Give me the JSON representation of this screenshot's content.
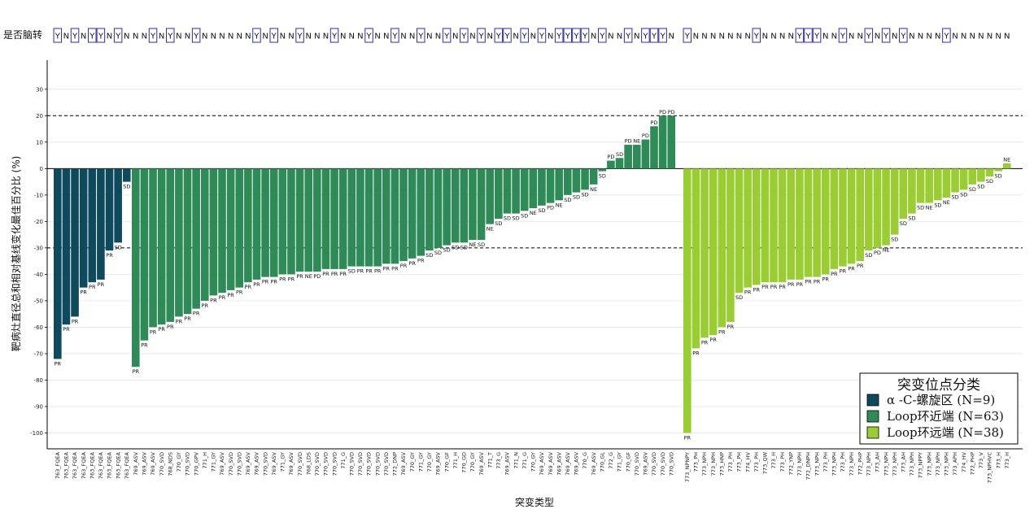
{
  "chart_data": {
    "type": "bar",
    "title": "",
    "xlabel": "突变类型",
    "ylabel": "靶病灶直径总和相对基线变化最佳百分比 (%)",
    "ylim": [
      -106,
      41
    ],
    "yticks": [
      30,
      20,
      10,
      0,
      -10,
      -20,
      -30,
      -40,
      -50,
      -60,
      -70,
      -80,
      -90,
      -100
    ],
    "reference_lines": [
      20,
      -30
    ],
    "grid": true,
    "top_row_label": "是否脑转",
    "legend": {
      "title": "突变位点分类",
      "position": "bottom-right",
      "items": [
        {
          "label": "α -C-螺旋区 (N=9)",
          "color": "#0d4a5e"
        },
        {
          "label": "Loop环近端 (N=63)",
          "color": "#2e8b57"
        },
        {
          "label": "Loop环远端 (N=38)",
          "color": "#9acd32"
        }
      ]
    },
    "colors": {
      "alpha": "#0d4a5e",
      "proximal": "#2e8b57",
      "distal": "#9acd32"
    },
    "series": [
      {
        "name": "α -C-螺旋区 (N=9)",
        "categories": [
          "763_FQEA",
          "763_FQEA",
          "763_FQEA",
          "763_FQEA",
          "763_FQEA",
          "763_FQEA",
          "763_FQEA",
          "763_FQEA",
          "763_FQEA"
        ],
        "values": [
          -72,
          -59,
          -56,
          -45,
          -43,
          -42,
          -31,
          -28,
          -5
        ],
        "responses": [
          "PR",
          "PR",
          "PR",
          "PR",
          "PR",
          "PR",
          "PR",
          "SD",
          "SD"
        ],
        "brain": [
          "Y",
          "N",
          "Y",
          "N",
          "Y",
          "Y",
          "N",
          "Y",
          "N"
        ]
      },
      {
        "name": "Loop环近端 (N=63)",
        "categories": [
          "769_ASV",
          "769_ASV",
          "769_ASV",
          "770_SVD",
          "768_NDS",
          "770_GY",
          "770_SVD",
          "770_GPV",
          "771_H",
          "771_GY",
          "769_ASV",
          "770_SVD",
          "770_SVD",
          "769_ASV",
          "769_ASV",
          "770_SVD",
          "769_ASV",
          "771_GY",
          "769_ASV",
          "770_SVD",
          "768_LDS",
          "770_SVD",
          "770_SVD",
          "770_SVD",
          "771_G",
          "770_SVD",
          "770_SVD",
          "770_SVD",
          "770_SVD",
          "770_SVD",
          "772_DNP",
          "769_ASV",
          "770_GY",
          "771_GY",
          "770_GY",
          "769_ASV",
          "770_GF",
          "771_H",
          "770_GD",
          "770_GY",
          "769_ASV",
          "771_T",
          "773_G",
          "769_ASV",
          "771_N",
          "771_G",
          "770_GY",
          "769_ASV",
          "769_ASV",
          "769_ASV",
          "769_ASV",
          "769_ASV",
          "770_G",
          "769_ASV",
          "770_GL",
          "772_G",
          "771_GY",
          "770_GF",
          "770_SVD",
          "769_ASV",
          "770_SVD",
          "770_SVD",
          "770_SVD"
        ],
        "values": [
          -75,
          -65,
          -60,
          -59,
          -58,
          -56,
          -55,
          -53,
          -50,
          -48,
          -47,
          -46,
          -45,
          -43,
          -42,
          -41,
          -41,
          -40,
          -40,
          -39,
          -39,
          -39,
          -38,
          -38,
          -38,
          -37,
          -37,
          -37,
          -37,
          -36,
          -36,
          -35,
          -34,
          -33,
          -31,
          -30,
          -29,
          -28,
          -28,
          -27,
          -27,
          -21,
          -19,
          -17,
          -17,
          -16,
          -15,
          -14,
          -13,
          -12,
          -10,
          -9,
          -8,
          -6,
          -1,
          3,
          4,
          9,
          9,
          11,
          16,
          20,
          20
        ],
        "responses": [
          "PR",
          "PR",
          "PR",
          "PR",
          "PR",
          "PR",
          "PR",
          "PR",
          "PR",
          "PR",
          "PR",
          "PR",
          "PR",
          "PR",
          "PR",
          "PR",
          "PR",
          "PR",
          "PR",
          "PR",
          "NE",
          "PD",
          "PR",
          "PR",
          "PR",
          "SD",
          "PR",
          "PR",
          "PR",
          "PR",
          "PR",
          "PR",
          "PR",
          "PR",
          "SD",
          "SD",
          "SD",
          "SD",
          "SD",
          "NE",
          "SD",
          "NE",
          "SD",
          "SD",
          "SD",
          "SD",
          "NE",
          "SD",
          "PD",
          "NE",
          "SD",
          "SD",
          "SD",
          "NE",
          "SD",
          "PD",
          "SD",
          "PD",
          "NE",
          "PD",
          "PD",
          "PD",
          "PD"
        ],
        "brain": [
          "N",
          "N",
          "Y",
          "N",
          "Y",
          "N",
          "N",
          "Y",
          "N",
          "N",
          "N",
          "N",
          "N",
          "N",
          "Y",
          "N",
          "Y",
          "N",
          "N",
          "Y",
          "N",
          "N",
          "N",
          "Y",
          "N",
          "N",
          "N",
          "Y",
          "N",
          "N",
          "Y",
          "N",
          "N",
          "Y",
          "N",
          "N",
          "Y",
          "N",
          "Y",
          "N",
          "Y",
          "N",
          "Y",
          "Y",
          "N",
          "Y",
          "N",
          "Y",
          "N",
          "Y",
          "Y",
          "Y",
          "Y",
          "N",
          "Y",
          "N",
          "N",
          "Y",
          "N",
          "Y",
          "Y",
          "Y",
          "N"
        ]
      },
      {
        "name": "Loop环远端 (N=38)",
        "categories": [
          "773_NPNPY",
          "773_PH",
          "773_NPH",
          "773_NPH",
          "773_HNP",
          "773_PH",
          "773_PH",
          "774_HV",
          "773_PH",
          "773_QW",
          "773_H",
          "773_PH",
          "772_YNP",
          "773_NPH",
          "772_DNPH",
          "773_NPH",
          "773_PH",
          "773_NPH",
          "773_PH",
          "773_NPH",
          "772_PHP",
          "773_NPH",
          "773_AH",
          "773_NPH",
          "773_NPH",
          "773_AH",
          "773_NPH",
          "773_NPPY",
          "773_NPH",
          "773_NPH",
          "773_NPH",
          "773_APH",
          "774_HV",
          "772_PHP",
          "773_V",
          "773_NPHVC",
          "773_H",
          "773_H"
        ],
        "values": [
          -100,
          -68,
          -64,
          -63,
          -60,
          -58,
          -47,
          -45,
          -44,
          -43,
          -43,
          -43,
          -42,
          -42,
          -41,
          -41,
          -40,
          -38,
          -37,
          -36,
          -35,
          -31,
          -30,
          -29,
          -25,
          -19,
          -17,
          -13,
          -13,
          -12,
          -11,
          -9,
          -8,
          -6,
          -5,
          -3,
          -1,
          2
        ],
        "responses": [
          "PR",
          "PR",
          "PR",
          "PR",
          "PR",
          "PR",
          "SD",
          "PR",
          "PR",
          "PR",
          "PR",
          "PR",
          "PR",
          "PR",
          "PR",
          "PR",
          "PR",
          "PR",
          "PR",
          "PR",
          "PR",
          "SD",
          "PD",
          "NE",
          "SD",
          "SD",
          "SD",
          "SD",
          "NE",
          "SD",
          "NE",
          "SD",
          "SD",
          "SD",
          "SD",
          "SD",
          "SD",
          "NE"
        ],
        "brain": [
          "Y",
          "N",
          "N",
          "N",
          "N",
          "N",
          "N",
          "N",
          "Y",
          "N",
          "N",
          "N",
          "N",
          "Y",
          "Y",
          "Y",
          "N",
          "N",
          "Y",
          "N",
          "N",
          "Y",
          "N",
          "Y",
          "N",
          "Y",
          "N",
          "N",
          "N",
          "N",
          "Y",
          "N",
          "N",
          "N",
          "N",
          "N",
          "N",
          "N"
        ]
      }
    ]
  }
}
